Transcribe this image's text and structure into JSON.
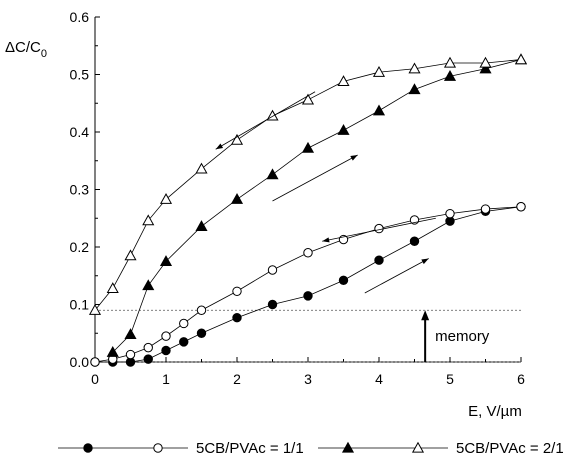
{
  "chart_data": {
    "type": "line",
    "xlabel": "E, V/µm",
    "ylabel_main": "ΔC/C",
    "ylabel_sub": "0",
    "xlim": [
      0,
      6
    ],
    "ylim": [
      0,
      0.6
    ],
    "xticks": [
      "0",
      "1",
      "2",
      "3",
      "4",
      "5",
      "6"
    ],
    "yticks": [
      "0.0",
      "0.1",
      "0.2",
      "0.3",
      "0.4",
      "0.5",
      "0.6"
    ],
    "grid": false,
    "legend_position": "bottom",
    "legend_text": [
      "5CB/PVAc = 1/1",
      "5CB/PVAc = 2/1"
    ],
    "reference_lines": [
      0.0,
      0.09
    ],
    "annotation": {
      "text": "memory",
      "x": 4.65,
      "y_from": 0.0,
      "y_to": 0.09
    },
    "series": [
      {
        "group": 0,
        "direction": "increasing",
        "marker": "circle-filled",
        "x": [
          0,
          0.25,
          0.5,
          0.75,
          1.0,
          1.25,
          1.5,
          2.0,
          2.5,
          3.0,
          3.5,
          4.0,
          4.5,
          5.0,
          5.5,
          6.0
        ],
        "values": [
          0.0,
          0.0,
          0.0,
          0.005,
          0.02,
          0.035,
          0.05,
          0.077,
          0.1,
          0.115,
          0.142,
          0.177,
          0.21,
          0.245,
          0.262,
          0.27
        ]
      },
      {
        "group": 0,
        "direction": "decreasing",
        "marker": "circle-open",
        "x": [
          0,
          0.25,
          0.5,
          0.75,
          1.0,
          1.25,
          1.5,
          2.0,
          2.5,
          3.0,
          3.5,
          4.0,
          4.5,
          5.0,
          5.5,
          6.0
        ],
        "values": [
          0.0,
          0.005,
          0.013,
          0.025,
          0.045,
          0.067,
          0.09,
          0.123,
          0.16,
          0.19,
          0.213,
          0.232,
          0.247,
          0.258,
          0.266,
          0.27
        ]
      },
      {
        "group": 1,
        "direction": "increasing",
        "marker": "triangle-filled",
        "x": [
          0.25,
          0.5,
          0.75,
          1.0,
          1.5,
          2.0,
          2.5,
          3.0,
          3.5,
          4.0,
          4.5,
          5.0,
          5.5,
          6.0
        ],
        "values": [
          0.017,
          0.048,
          0.133,
          0.175,
          0.236,
          0.283,
          0.326,
          0.372,
          0.403,
          0.437,
          0.474,
          0.497,
          0.51,
          0.526
        ]
      },
      {
        "group": 1,
        "direction": "decreasing",
        "marker": "triangle-open",
        "x": [
          0,
          0.25,
          0.5,
          0.75,
          1.0,
          1.5,
          2.0,
          2.5,
          3.0,
          3.5,
          4.0,
          4.5,
          5.0,
          5.5,
          6.0
        ],
        "values": [
          0.09,
          0.128,
          0.185,
          0.246,
          0.283,
          0.336,
          0.386,
          0.428,
          0.456,
          0.488,
          0.504,
          0.51,
          0.52,
          0.52,
          0.526
        ]
      }
    ],
    "direction_arrows": [
      {
        "series": 3,
        "from": [
          3.1,
          0.47
        ],
        "to": [
          1.7,
          0.37
        ]
      },
      {
        "series": 2,
        "from": [
          2.5,
          0.28
        ],
        "to": [
          3.7,
          0.36
        ]
      },
      {
        "series": 1,
        "from": [
          4.8,
          0.25
        ],
        "to": [
          3.2,
          0.21
        ]
      },
      {
        "series": 0,
        "from": [
          3.8,
          0.12
        ],
        "to": [
          4.7,
          0.18
        ]
      }
    ]
  }
}
